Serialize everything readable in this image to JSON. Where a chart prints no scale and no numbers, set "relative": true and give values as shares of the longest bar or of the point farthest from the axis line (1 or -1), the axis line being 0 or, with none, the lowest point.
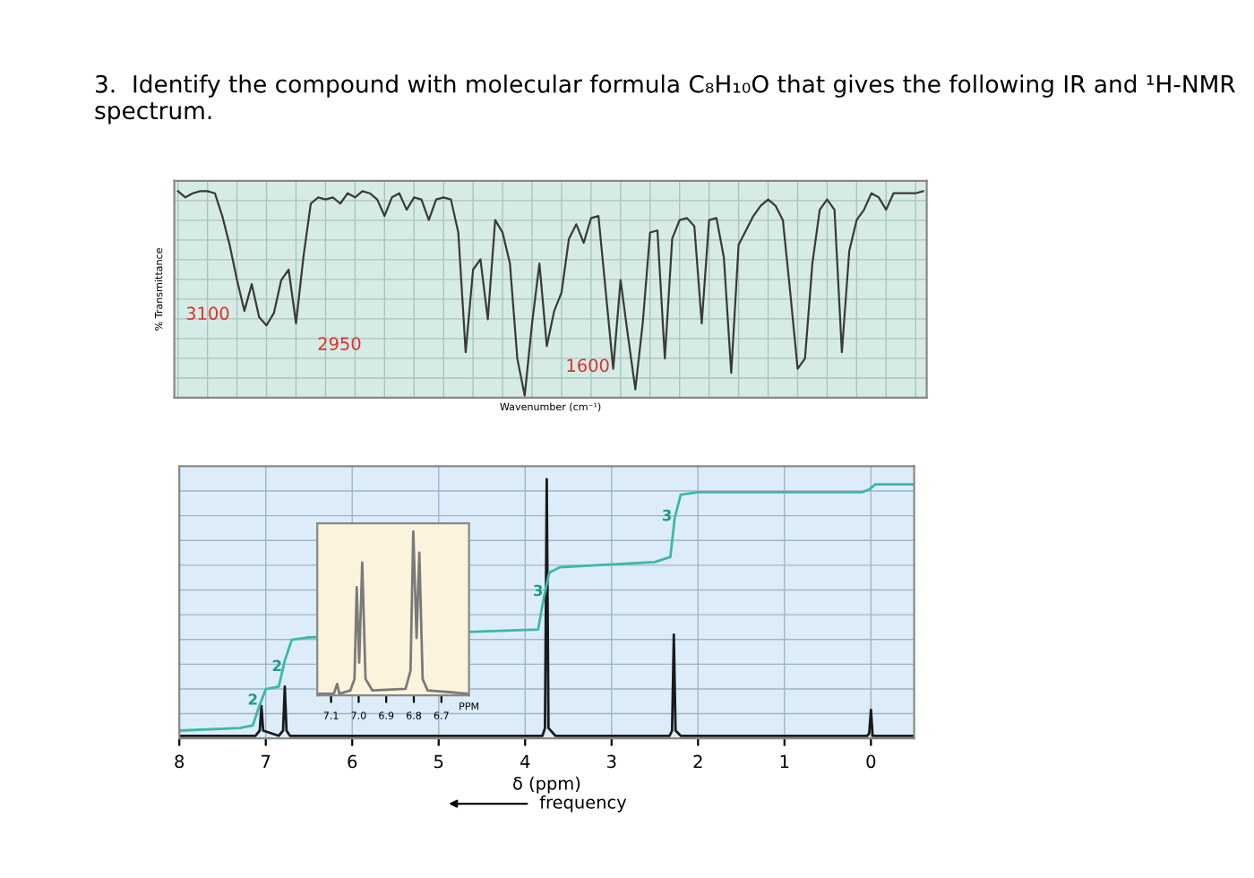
{
  "chart_data": [
    {
      "type": "line",
      "title": "3.  Identify the compound with molecular formula C₈H₁₀O that gives the following IR and ¹H-NMR spectrum.",
      "xlabel": "Wavenumber (cm⁻¹)",
      "ylabel": "% Transmittance",
      "relative": true,
      "grid": true,
      "tick_labels": false,
      "categories": [
        null,
        null,
        null,
        null,
        null,
        null,
        null,
        null,
        null,
        null,
        null,
        null,
        null,
        null,
        null,
        null,
        null,
        null,
        null,
        null,
        null,
        null,
        null,
        null,
        null,
        null,
        null,
        null,
        null,
        null,
        null,
        null,
        null,
        null,
        null,
        null,
        null,
        null,
        null,
        null,
        null,
        null,
        null,
        null,
        null,
        null,
        null,
        null,
        null,
        null,
        null,
        null,
        null,
        null,
        null,
        null,
        null,
        null,
        null,
        null,
        null,
        null,
        null,
        null,
        null,
        null,
        null,
        null,
        null,
        null,
        null,
        null,
        null,
        null,
        null,
        null,
        null,
        null,
        null,
        null,
        null,
        null,
        null,
        null,
        null,
        null,
        null,
        null,
        null,
        null,
        null,
        null,
        null,
        null,
        null,
        null,
        null,
        null,
        null,
        null,
        null,
        null
      ],
      "series": [
        {
          "color": "#3a3a3a",
          "values": [
            1.0,
            0.97,
            0.99,
            1.0,
            1.0,
            0.99,
            0.88,
            0.74,
            0.57,
            0.42,
            0.55,
            0.39,
            0.35,
            0.41,
            0.57,
            0.62,
            0.36,
            0.68,
            0.94,
            0.97,
            0.96,
            0.97,
            0.94,
            0.99,
            0.97,
            1.0,
            0.99,
            0.96,
            0.88,
            0.97,
            0.99,
            0.91,
            0.97,
            0.96,
            0.86,
            0.96,
            0.97,
            0.96,
            0.8,
            0.22,
            0.62,
            0.67,
            0.38,
            0.86,
            0.8,
            0.65,
            0.19,
            0.01,
            0.36,
            0.65,
            0.25,
            0.42,
            0.51,
            0.77,
            0.84,
            0.75,
            0.87,
            0.88,
            0.51,
            0.14,
            0.57,
            0.3,
            0.04,
            0.36,
            0.8,
            0.81,
            0.19,
            0.77,
            0.86,
            0.87,
            0.83,
            0.36,
            0.86,
            0.87,
            0.68,
            0.12,
            0.74,
            0.81,
            0.88,
            0.93,
            0.96,
            0.93,
            0.86,
            0.51,
            0.14,
            0.19,
            0.65,
            0.91,
            0.96,
            0.91,
            0.22,
            0.71,
            0.86,
            0.91,
            0.99,
            0.97,
            0.91,
            0.99,
            0.99,
            0.99,
            0.99,
            1.0
          ]
        }
      ],
      "annotations": [
        "3100",
        "2950",
        "1600"
      ]
    },
    {
      "type": "line",
      "xlabel": "δ (ppm)",
      "relative": true,
      "grid": true,
      "tick_labels": "x",
      "xlim": [
        8,
        -0.5
      ],
      "xticks": [
        8,
        7,
        6,
        5,
        4,
        3,
        2,
        1,
        0
      ],
      "series": [
        {
          "color": "#1a1a1a",
          "x": [
            8.0,
            7.12,
            7.07,
            7.05,
            7.03,
            6.85,
            6.8,
            6.78,
            6.76,
            6.72,
            3.8,
            3.77,
            3.75,
            3.73,
            3.65,
            2.33,
            2.3,
            2.28,
            2.26,
            2.2,
            0.04,
            0.02,
            0.0,
            -0.02,
            -0.5
          ],
          "values": [
            0.01,
            0.01,
            0.03,
            0.125,
            0.03,
            0.01,
            0.03,
            0.2,
            0.03,
            0.01,
            0.01,
            0.04,
            1.0,
            0.04,
            0.01,
            0.01,
            0.03,
            0.4,
            0.03,
            0.01,
            0.01,
            0.02,
            0.11,
            0.01,
            0.01
          ]
        },
        {
          "color": "#3cb8a6",
          "x": [
            8.0,
            7.3,
            7.15,
            7.08,
            7.0,
            6.85,
            6.78,
            6.7,
            6.5,
            3.85,
            3.78,
            3.72,
            3.6,
            2.5,
            2.32,
            2.27,
            2.2,
            2.0,
            0.1,
            0.02,
            -0.05,
            -0.5
          ],
          "values": [
            0.03,
            0.04,
            0.05,
            0.12,
            0.19,
            0.2,
            0.3,
            0.38,
            0.39,
            0.42,
            0.55,
            0.64,
            0.66,
            0.68,
            0.7,
            0.85,
            0.94,
            0.95,
            0.95,
            0.96,
            0.98,
            0.98
          ]
        }
      ],
      "annotations": [
        {
          "text": "2",
          "x": 7.15,
          "y": 0.13
        },
        {
          "text": "2",
          "x": 6.87,
          "y": 0.26
        },
        {
          "text": "3",
          "x": 3.85,
          "y": 0.55
        },
        {
          "text": "3",
          "x": 2.36,
          "y": 0.84
        },
        "frequency"
      ]
    },
    {
      "type": "line",
      "xlabel": "PPM",
      "relative": true,
      "tick_labels": "x",
      "xlim": [
        7.15,
        6.6
      ],
      "xticks": [
        7.1,
        {
          "value": 7,
          "label": "7.0"
        },
        6.9,
        6.8,
        6.7
      ],
      "series": [
        {
          "color": "#7a7a7a",
          "x": [
            7.15,
            7.09,
            7.078,
            7.07,
            7.03,
            7.015,
            7.007,
            6.998,
            6.987,
            6.975,
            6.95,
            6.83,
            6.812,
            6.802,
            6.79,
            6.78,
            6.768,
            6.75,
            6.6
          ],
          "values": [
            0.01,
            0.01,
            0.07,
            0.01,
            0.03,
            0.1,
            0.66,
            0.2,
            0.81,
            0.1,
            0.03,
            0.04,
            0.15,
            1.0,
            0.35,
            0.87,
            0.1,
            0.03,
            0.01
          ]
        }
      ]
    }
  ]
}
